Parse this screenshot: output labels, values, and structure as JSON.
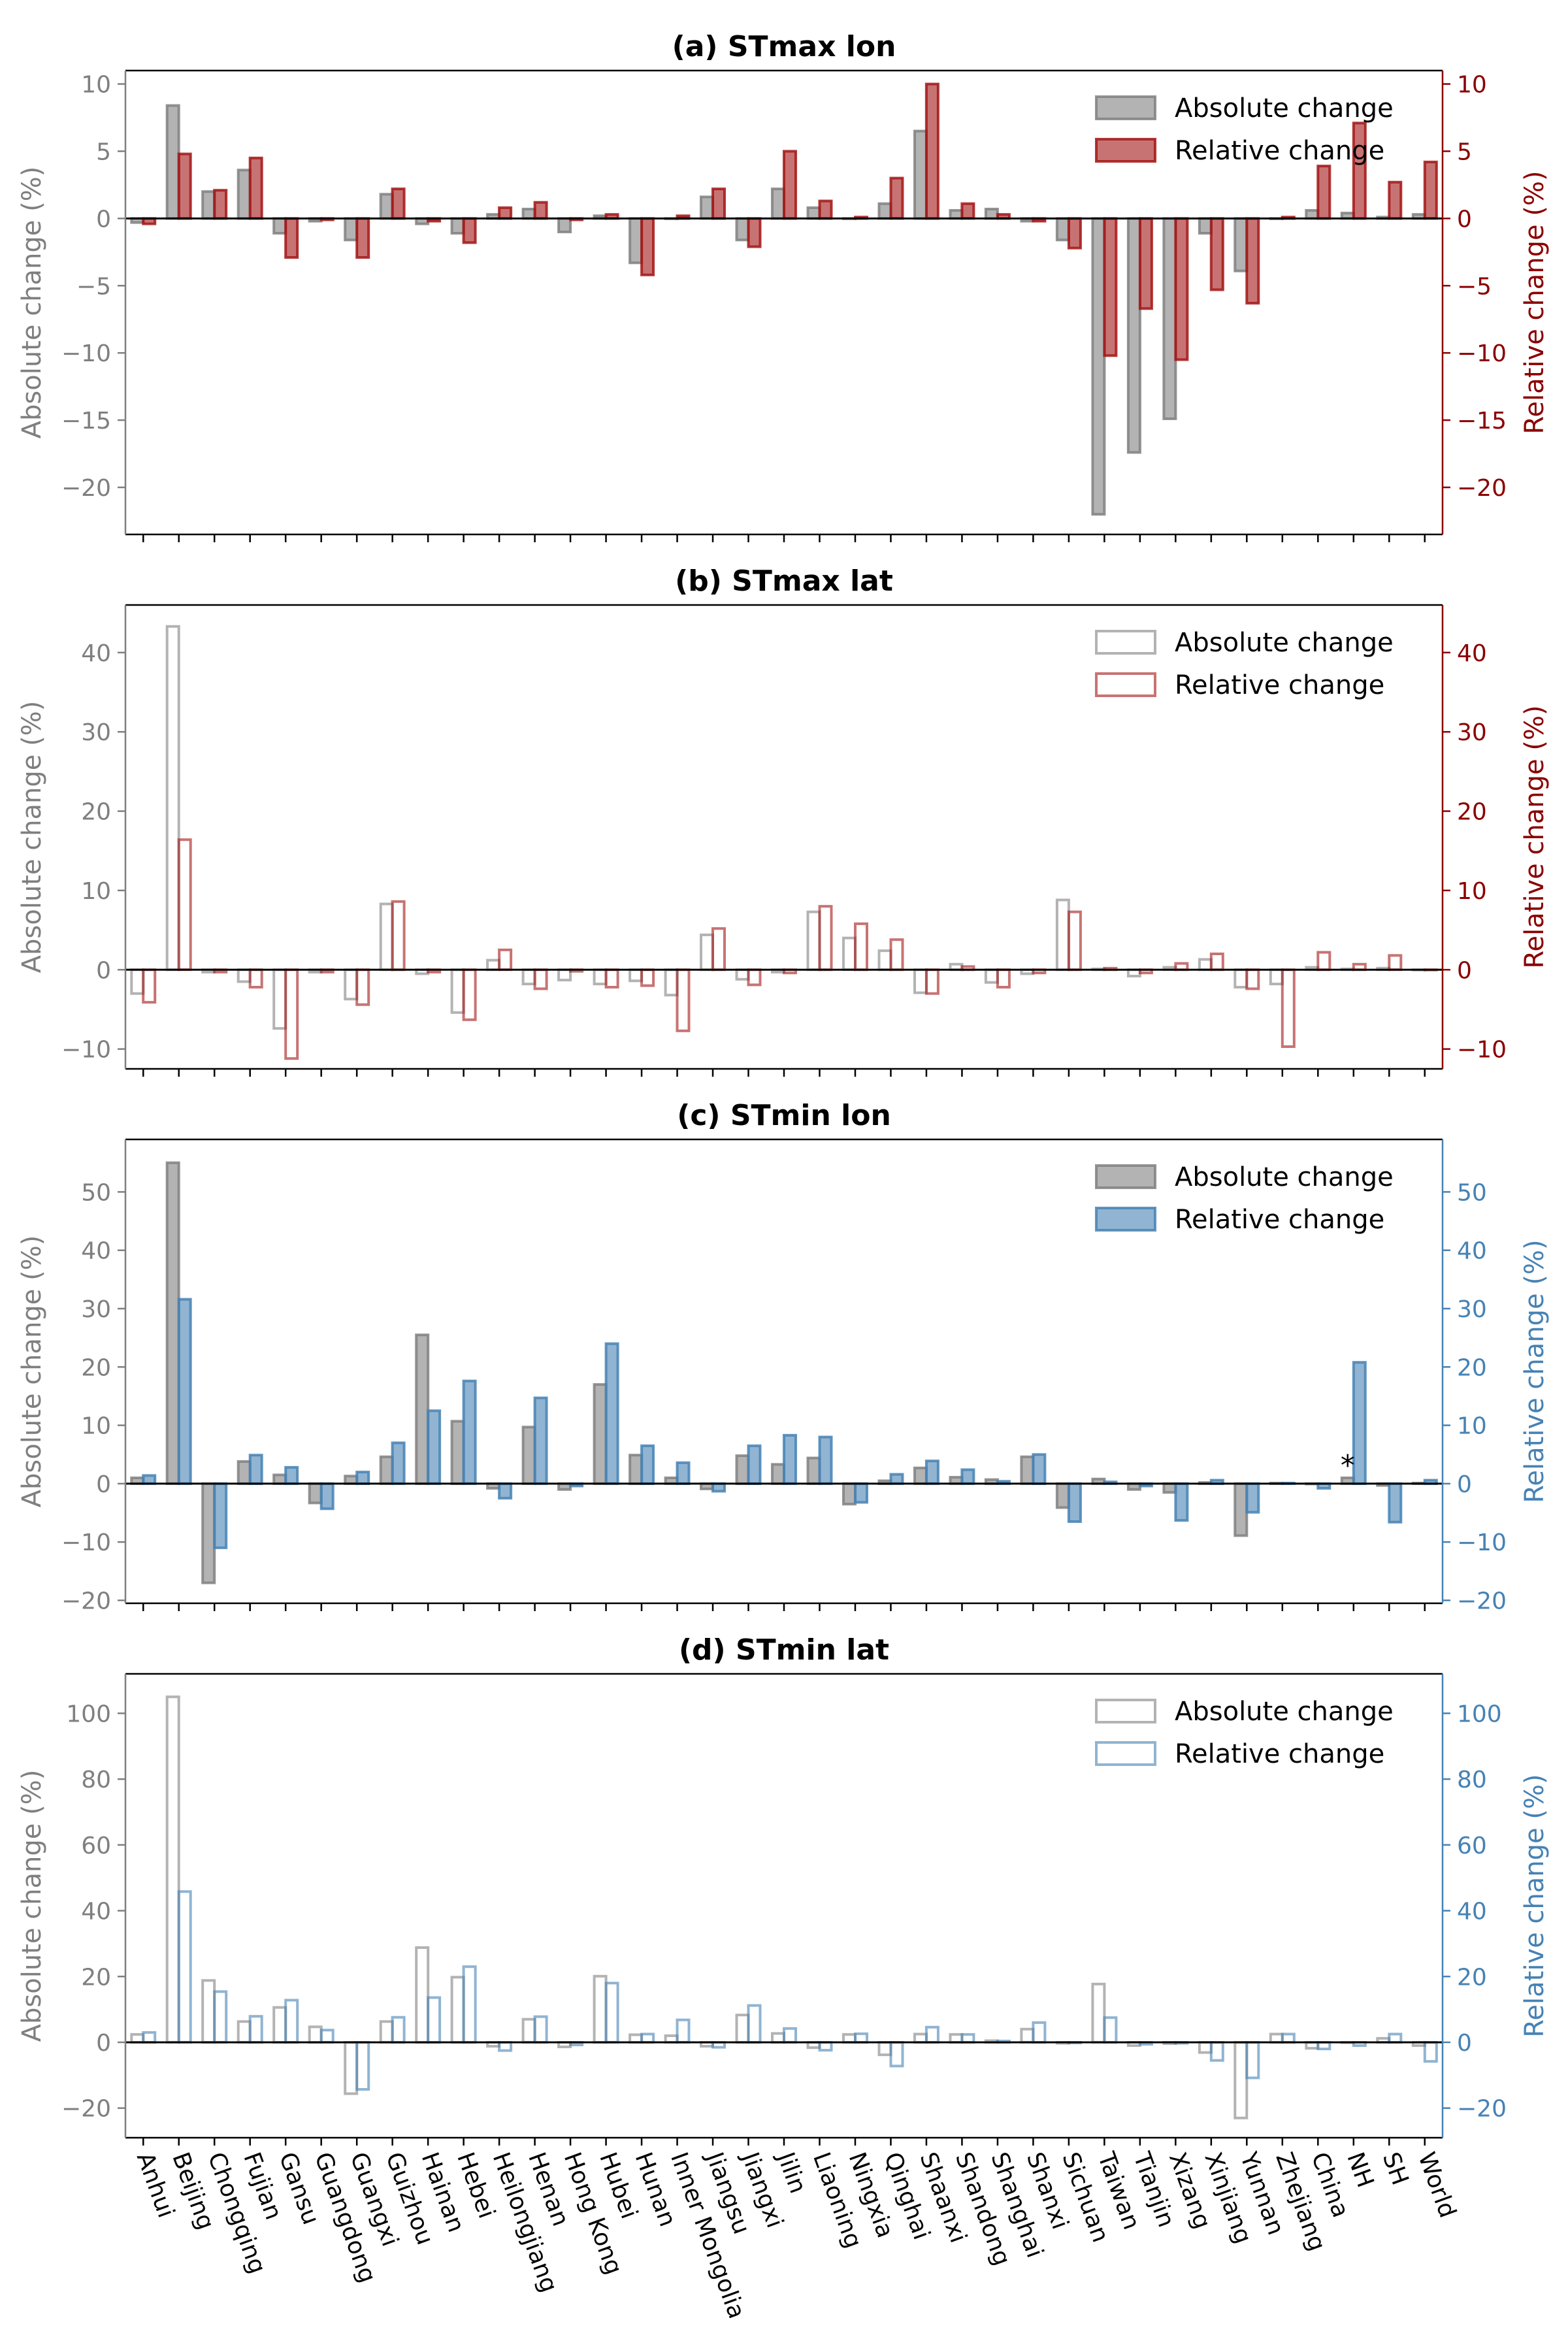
{
  "colors": {
    "absolute": "#808080",
    "relative_max": "#a31515",
    "relative_max_axis": "#8b0000",
    "relative_min": "#4682b4",
    "relative_min_axis": "#4682b4",
    "axis_left": "#7f7f7f"
  },
  "categories": [
    "Anhui",
    "Beijing",
    "Chongqing",
    "Fujian",
    "Gansu",
    "Guangdong",
    "Guangxi",
    "Guizhou",
    "Hainan",
    "Hebei",
    "Heilongjiang",
    "Henan",
    "Hong Kong",
    "Hubei",
    "Hunan",
    "Inner Mongolia",
    "Jiangsu",
    "Jiangxi",
    "Jilin",
    "Liaoning",
    "Ningxia",
    "Qinghai",
    "Shaanxi",
    "Shandong",
    "Shanghai",
    "Shanxi",
    "Sichuan",
    "Taiwan",
    "Tianjin",
    "Xizang",
    "Xinjiang",
    "Yunnan",
    "Zhejiang",
    "China",
    "NH",
    "SH",
    "World"
  ],
  "chart_data": [
    {
      "type": "bar",
      "title": "(a) STmax lon",
      "ylabel": "Absolute change (%)",
      "ylabel_right": "Relative change (%)",
      "ylim": [
        -23.5,
        11
      ],
      "yticks": [
        -20,
        -15,
        -10,
        -5,
        0,
        5,
        10
      ],
      "style": "filled",
      "relative_color": "red",
      "legend_position": "top-right",
      "series": [
        {
          "name": "Absolute change",
          "values": [
            -0.3,
            8.4,
            2.0,
            3.6,
            -1.1,
            -0.2,
            -1.6,
            1.8,
            -0.4,
            -1.1,
            0.3,
            0.7,
            -1.0,
            0.2,
            -3.3,
            0.0,
            1.6,
            -1.6,
            2.2,
            0.8,
            0.0,
            1.1,
            6.5,
            0.6,
            0.7,
            -0.2,
            -1.6,
            -22.0,
            -17.4,
            -14.9,
            -1.1,
            -3.9,
            0.0,
            0.6,
            0.4,
            0.1,
            0.3
          ]
        },
        {
          "name": "Relative change",
          "values": [
            -0.4,
            4.8,
            2.1,
            4.5,
            -2.9,
            -0.1,
            -2.9,
            2.2,
            -0.2,
            -1.8,
            0.8,
            1.2,
            -0.1,
            0.3,
            -4.2,
            0.2,
            2.2,
            -2.1,
            5.0,
            1.3,
            0.1,
            3.0,
            10.0,
            1.1,
            0.3,
            -0.2,
            -2.2,
            -10.2,
            -6.7,
            -10.5,
            -5.3,
            -6.3,
            0.1,
            3.9,
            7.1,
            2.7,
            4.2
          ]
        }
      ]
    },
    {
      "type": "bar",
      "title": "(b) STmax lat",
      "ylabel": "Absolute change (%)",
      "ylabel_right": "Relative change (%)",
      "ylim": [
        -12.5,
        46
      ],
      "yticks": [
        -10,
        0,
        10,
        20,
        30,
        40
      ],
      "style": "outline",
      "relative_color": "red",
      "legend_position": "top-right",
      "series": [
        {
          "name": "Absolute change",
          "values": [
            -3.0,
            43.3,
            -0.3,
            -1.5,
            -7.4,
            -0.3,
            -3.7,
            8.3,
            -0.5,
            -5.4,
            1.2,
            -1.8,
            -1.3,
            -1.8,
            -1.4,
            -3.2,
            4.4,
            -1.2,
            -0.3,
            7.3,
            4.0,
            2.4,
            -2.9,
            0.7,
            -1.6,
            -0.5,
            8.8,
            0.1,
            -0.8,
            0.3,
            1.3,
            -2.2,
            -1.8,
            0.3,
            0.1,
            0.2,
            0.0
          ]
        },
        {
          "name": "Relative change",
          "values": [
            -4.1,
            16.4,
            -0.3,
            -2.2,
            -11.2,
            -0.3,
            -4.4,
            8.6,
            -0.3,
            -6.3,
            2.5,
            -2.4,
            -0.2,
            -2.2,
            -2.0,
            -7.7,
            5.2,
            -1.9,
            -0.4,
            8.0,
            5.8,
            3.8,
            -3.0,
            0.4,
            -2.2,
            -0.4,
            7.3,
            0.2,
            -0.4,
            0.8,
            2.0,
            -2.4,
            -9.7,
            2.2,
            0.7,
            1.8,
            0.0
          ]
        }
      ]
    },
    {
      "type": "bar",
      "title": "(c) STmin lon",
      "ylabel": "Absolute change (%)",
      "ylabel_right": "Relative change (%)",
      "ylim": [
        -20.5,
        59
      ],
      "yticks": [
        -20,
        -10,
        0,
        10,
        20,
        30,
        40,
        50
      ],
      "style": "filled",
      "relative_color": "blue",
      "legend_position": "top-right",
      "annotation": {
        "text": "*",
        "category": "NH"
      },
      "series": [
        {
          "name": "Absolute change",
          "values": [
            1.0,
            55.0,
            -17.0,
            3.8,
            1.5,
            -3.3,
            1.3,
            4.6,
            25.5,
            10.7,
            -0.8,
            9.7,
            -1.0,
            17.0,
            4.9,
            1.0,
            -0.9,
            4.8,
            3.3,
            4.4,
            -3.5,
            0.5,
            2.7,
            1.1,
            0.7,
            4.6,
            -4.1,
            0.8,
            -1.0,
            -1.5,
            0.2,
            -8.9,
            0.1,
            0.0,
            1.0,
            -0.3,
            0.1
          ]
        },
        {
          "name": "Relative change",
          "values": [
            1.4,
            31.6,
            -11.0,
            4.9,
            2.8,
            -4.3,
            2.0,
            7.0,
            12.5,
            17.6,
            -2.5,
            14.7,
            -0.4,
            24.0,
            6.5,
            3.6,
            -1.3,
            6.5,
            8.3,
            8.0,
            -3.2,
            1.6,
            3.9,
            2.4,
            0.4,
            5.0,
            -6.5,
            0.3,
            -0.4,
            -6.3,
            0.6,
            -4.9,
            0.1,
            -0.8,
            20.8,
            -6.6,
            0.6
          ]
        }
      ]
    },
    {
      "type": "bar",
      "title": "(d) STmin lat",
      "ylabel": "Absolute change (%)",
      "ylabel_right": "Relative change (%)",
      "ylim": [
        -29,
        112
      ],
      "yticks": [
        -20,
        0,
        20,
        40,
        60,
        80,
        100
      ],
      "style": "outline",
      "relative_color": "blue",
      "legend_position": "top-right",
      "series": [
        {
          "name": "Absolute change",
          "values": [
            2.4,
            105.0,
            18.8,
            6.3,
            10.6,
            4.7,
            -15.6,
            6.3,
            28.8,
            19.8,
            -1.2,
            7.0,
            -1.4,
            20.1,
            2.3,
            2.0,
            -1.2,
            8.3,
            2.7,
            -1.6,
            2.4,
            -3.8,
            2.5,
            2.4,
            0.5,
            4.0,
            -0.3,
            17.7,
            -1.0,
            -0.4,
            -3.1,
            -23.0,
            2.5,
            -1.8,
            0.0,
            1.2,
            -1.0
          ]
        },
        {
          "name": "Relative change",
          "values": [
            3.0,
            45.8,
            15.4,
            7.9,
            12.8,
            3.7,
            -14.3,
            7.6,
            13.6,
            23.0,
            -2.5,
            7.8,
            -0.8,
            18.0,
            2.5,
            6.8,
            -1.5,
            11.2,
            4.2,
            -2.4,
            2.6,
            -7.2,
            4.6,
            2.4,
            0.4,
            6.0,
            -0.2,
            7.5,
            -0.6,
            -0.3,
            -5.5,
            -10.8,
            2.5,
            -2.0,
            -1.0,
            2.5,
            -5.8
          ]
        }
      ]
    }
  ]
}
